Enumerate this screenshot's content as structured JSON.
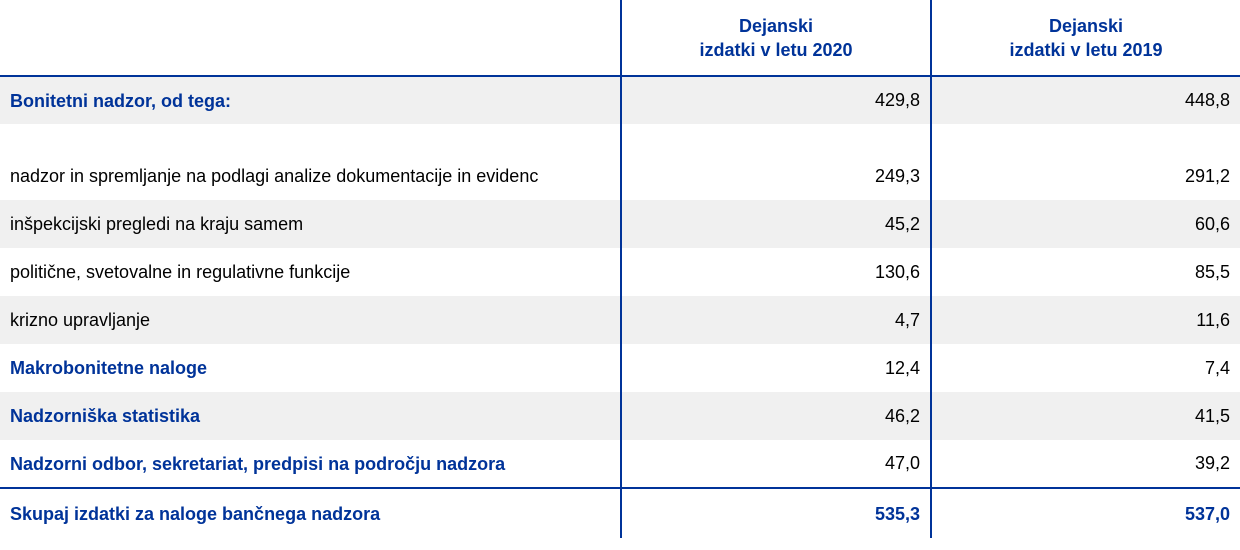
{
  "header": {
    "col1_line1": "Dejanski",
    "col1_line2": "izdatki v letu 2020",
    "col2_line1": "Dejanski",
    "col2_line2": "izdatki v letu 2019"
  },
  "rows": [
    {
      "label": "Bonitetni nadzor, od tega:",
      "v2020": "429,8",
      "v2019": "448,8"
    },
    {
      "label": "nadzor in spremljanje na podlagi analize dokumentacije in evidenc",
      "v2020": "249,3",
      "v2019": "291,2"
    },
    {
      "label": "inšpekcijski pregledi na kraju samem",
      "v2020": "45,2",
      "v2019": "60,6"
    },
    {
      "label": "politične, svetovalne in regulativne funkcije",
      "v2020": "130,6",
      "v2019": "85,5"
    },
    {
      "label": "krizno upravljanje",
      "v2020": "4,7",
      "v2019": "11,6"
    },
    {
      "label": "Makrobonitetne naloge",
      "v2020": "12,4",
      "v2019": "7,4"
    },
    {
      "label": "Nadzorniška statistika",
      "v2020": "46,2",
      "v2019": "41,5"
    },
    {
      "label": "Nadzorni odbor, sekretariat, predpisi na področju nadzora",
      "v2020": "47,0",
      "v2019": "39,2"
    }
  ],
  "total": {
    "label": "Skupaj izdatki za naloge bančnega nadzora",
    "v2020": "535,3",
    "v2019": "537,0"
  },
  "colors": {
    "accent": "#003399",
    "row_shade": "#f0f0f0"
  }
}
